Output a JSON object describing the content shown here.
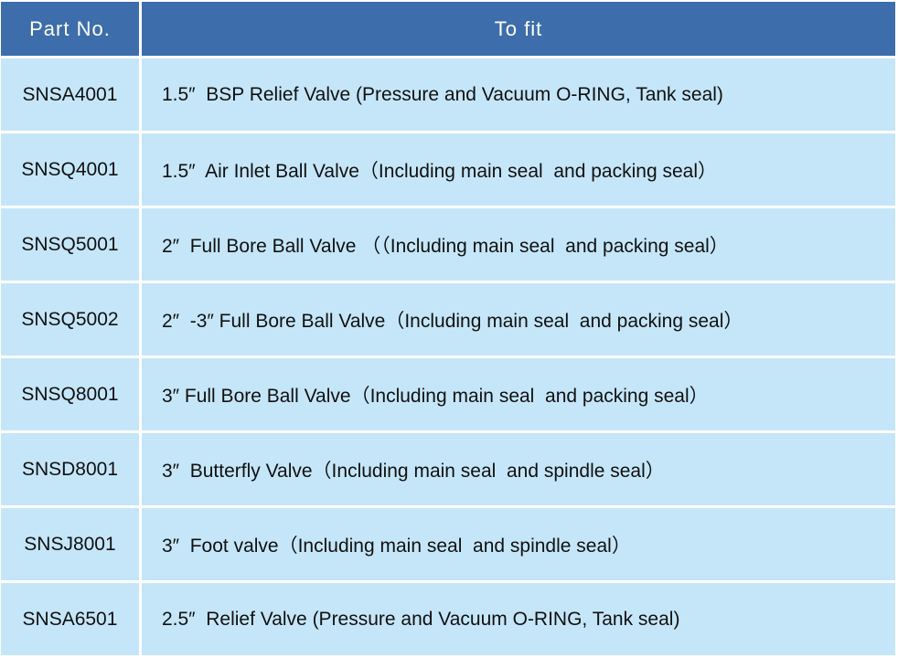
{
  "table": {
    "headers": [
      "Part No.",
      "To fit"
    ],
    "rows": [
      {
        "part_no": "SNSA4001",
        "to_fit": "1.5″  BSP Relief Valve (Pressure and Vacuum O-RING, Tank seal)"
      },
      {
        "part_no": "SNSQ4001",
        "to_fit": "1.5″  Air Inlet Ball Valve（Including main seal  and packing seal）"
      },
      {
        "part_no": "SNSQ5001",
        "to_fit": "2″  Full Bore Ball Valve （（Including main seal  and packing seal）"
      },
      {
        "part_no": "SNSQ5002",
        "to_fit": "2″  -3″ Full Bore Ball Valve（Including main seal  and packing seal）"
      },
      {
        "part_no": "SNSQ8001",
        "to_fit": "3″ Full Bore Ball Valve（Including main seal  and packing seal）"
      },
      {
        "part_no": "SNSD8001",
        "to_fit": "3″  Butterfly Valve（Including main seal  and spindle seal）"
      },
      {
        "part_no": "SNSJ8001",
        "to_fit": "3″  Foot valve（Including main seal  and spindle seal）"
      },
      {
        "part_no": "SNSA6501",
        "to_fit": "2.5″  Relief Valve (Pressure and Vacuum O-RING, Tank seal)"
      }
    ]
  },
  "colors": {
    "header_bg": "#3e6dab",
    "cell_bg": "#c5e6f8"
  }
}
